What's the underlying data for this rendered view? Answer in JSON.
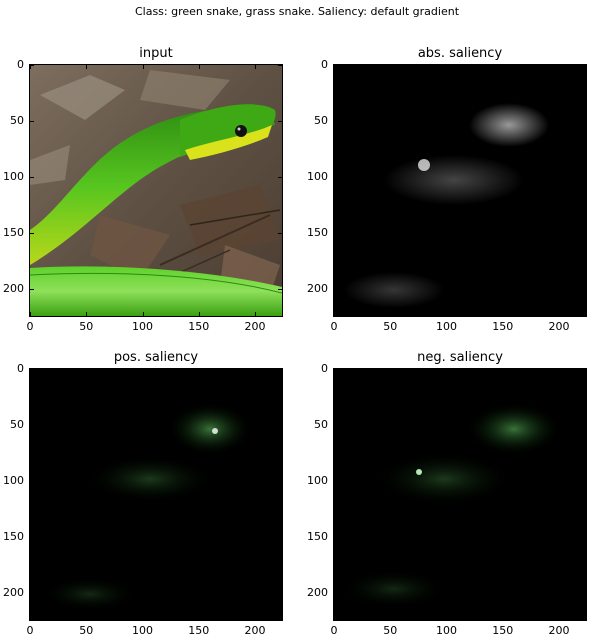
{
  "figure": {
    "suptitle": "Class: green snake, grass snake. Saliency: default gradient"
  },
  "panels": [
    {
      "title": "input",
      "kind": "input-photo"
    },
    {
      "title": "abs. saliency",
      "kind": "saliency-abs"
    },
    {
      "title": "pos. saliency",
      "kind": "saliency-pos"
    },
    {
      "title": "neg. saliency",
      "kind": "saliency-neg"
    }
  ],
  "axes": {
    "x_ticks": [
      "0",
      "50",
      "100",
      "150",
      "200"
    ],
    "y_ticks": [
      "0",
      "50",
      "100",
      "150",
      "200"
    ],
    "x_tick_values": [
      0,
      50,
      100,
      150,
      200
    ],
    "y_tick_values": [
      0,
      50,
      100,
      150,
      200
    ],
    "xlim": [
      0,
      224
    ],
    "ylim": [
      224,
      0
    ]
  },
  "colors": {
    "snake_green": "#4cc21a",
    "snake_yellow": "#d8e21a",
    "ground_brown": "#6a5a48",
    "saliency_background": "#000000"
  }
}
